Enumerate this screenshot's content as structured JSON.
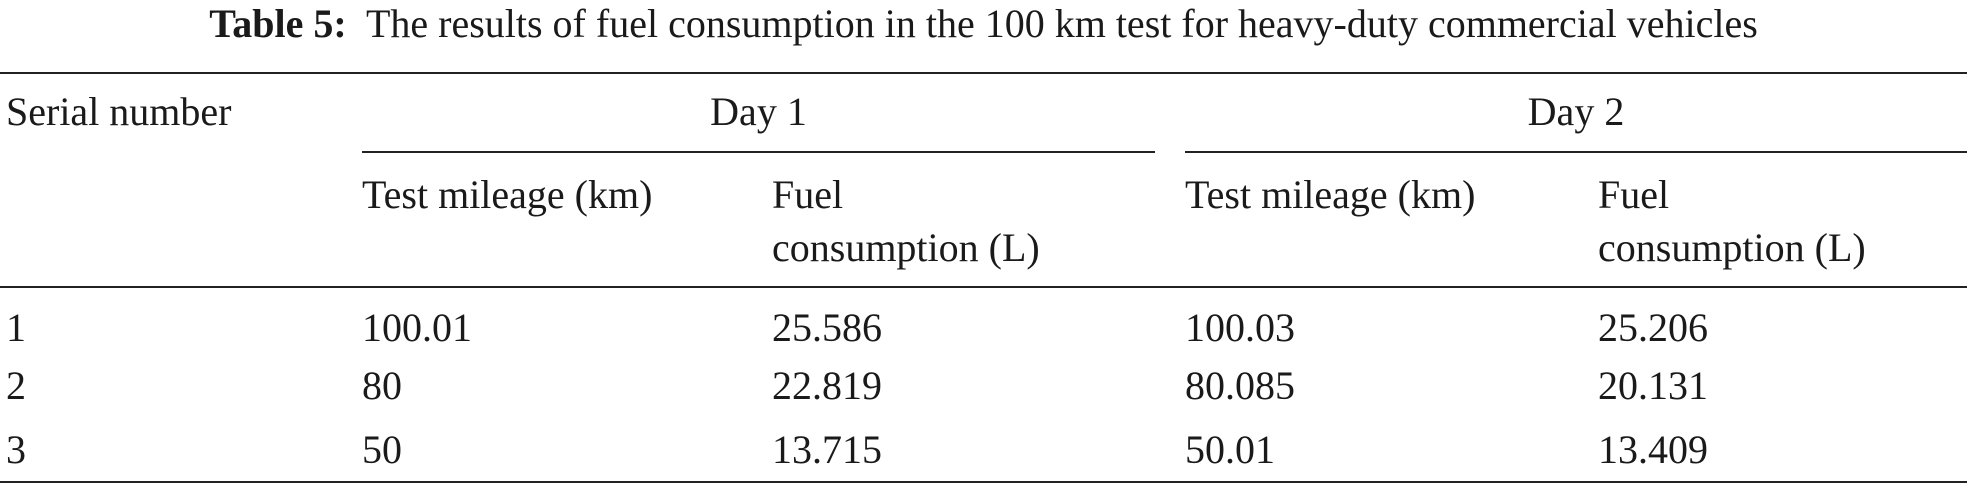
{
  "table": {
    "label": "Table 5:",
    "title": "The results of fuel consumption in the 100 km test for heavy-duty commercial vehicles",
    "header": {
      "serial": "Serial number",
      "groups": [
        "Day 1",
        "Day 2"
      ],
      "columns": [
        "Test mileage (km)",
        "Fuel",
        "consumption (L)",
        "Test mileage (km)",
        "Fuel",
        "consumption (L)"
      ]
    },
    "rows": [
      [
        "1",
        "100.01",
        "25.586",
        "100.03",
        "25.206"
      ],
      [
        "2",
        "80",
        "22.819",
        "80.085",
        "20.131"
      ],
      [
        "3",
        "50",
        "13.715",
        "50.01",
        "13.409"
      ]
    ]
  }
}
